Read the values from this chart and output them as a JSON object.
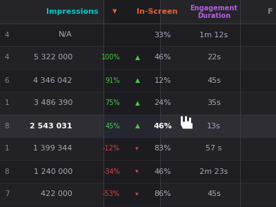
{
  "bg_color": "#1e1e22",
  "header_row_bg": "#252529",
  "row_bg_dark": "#1e1e22",
  "row_bg_alt": "#222226",
  "highlight_row_bg": "#2e2e34",
  "divider_color": "#3a3a42",
  "header_impressions_color": "#00c8c8",
  "header_inscreen_color": "#e86030",
  "header_engagement_color": "#b060e0",
  "header_text_color": "#888899",
  "cell_text_color": "#aaaabc",
  "white_bold_color": "#ffffff",
  "green_color": "#44cc44",
  "red_color": "#dd4444",
  "col_left_label_color": "#888899",
  "rows": [
    {
      "label": "4",
      "impressions": "N/A",
      "diff": "",
      "diff_color": null,
      "diff_arrow": "",
      "inscreen": "33%",
      "engagement": "1m 12s",
      "highlight": false
    },
    {
      "label": "4",
      "impressions": "5 322 000",
      "diff": "100%",
      "diff_color": "#44cc44",
      "diff_arrow": "▲",
      "inscreen": "46%",
      "engagement": "22s",
      "highlight": false
    },
    {
      "label": "6",
      "impressions": "4 346 042",
      "diff": "91%",
      "diff_color": "#44cc44",
      "diff_arrow": "▲",
      "inscreen": "12%",
      "engagement": "45s",
      "highlight": false
    },
    {
      "label": "1",
      "impressions": "3 486 390",
      "diff": "75%",
      "diff_color": "#44cc44",
      "diff_arrow": "▲",
      "inscreen": "24%",
      "engagement": "35s",
      "highlight": false
    },
    {
      "label": "8",
      "impressions": "2 543 031",
      "diff": "45%",
      "diff_color": "#44cc44",
      "diff_arrow": "▲",
      "inscreen": "46%",
      "engagement": "13s",
      "highlight": true
    },
    {
      "label": "1",
      "impressions": "1 399 344",
      "diff": "-12%",
      "diff_color": "#dd4444",
      "diff_arrow": "▾",
      "inscreen": "83%",
      "engagement": "57 s",
      "highlight": false
    },
    {
      "label": "8",
      "impressions": "1 240 000",
      "diff": "-34%",
      "diff_color": "#dd4444",
      "diff_arrow": "▾",
      "inscreen": "46%",
      "engagement": "2m 23s",
      "highlight": false
    },
    {
      "label": "7",
      "impressions": "422 000",
      "diff": "-53%",
      "diff_color": "#dd4444",
      "diff_arrow": "▾",
      "inscreen": "86%",
      "engagement": "45s",
      "highlight": false
    }
  ],
  "figsize": [
    4.0,
    3.0
  ],
  "dpi": 100
}
